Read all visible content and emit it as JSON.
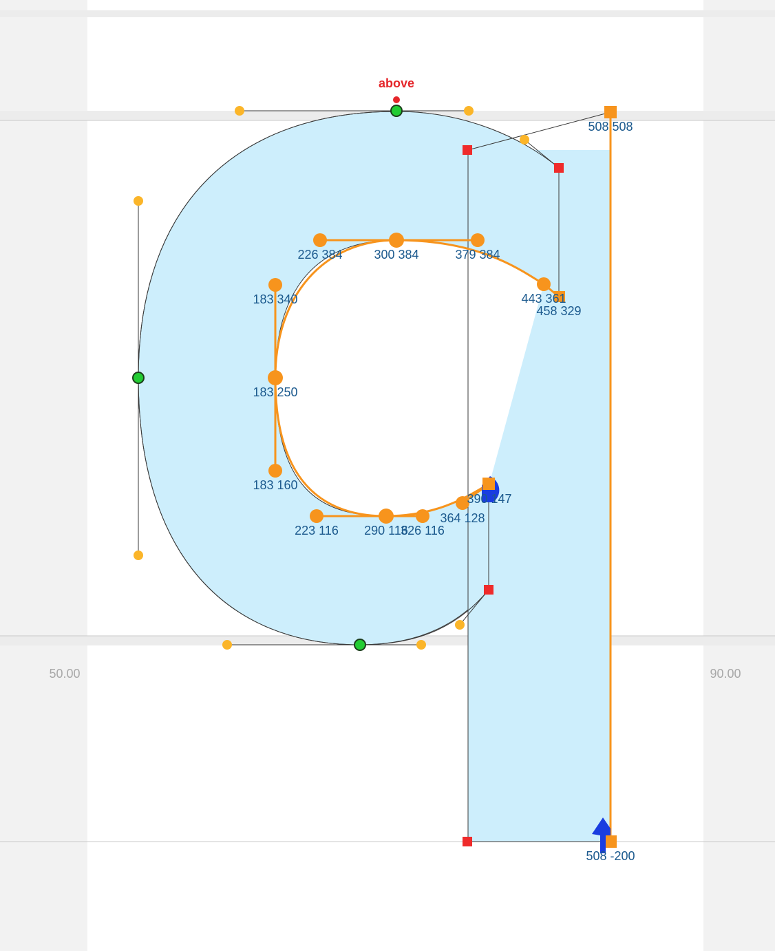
{
  "editor": {
    "sidebearing_left_value": "50.00",
    "sidebearing_right_value": "90.00",
    "anchor_name": "above",
    "colors": {
      "canvas_background": "#ffffff",
      "margin_background": "#f2f2f2",
      "glyph_fill": "#cdeefc",
      "selection_orange": "#f7941d",
      "offcurve_yellow": "#fbb529",
      "oncurve_green": "#22cc33",
      "corner_red": "#ef2b2b",
      "start_blue": "#1a3de0",
      "anchor_red": "#e5262a",
      "label_blue": "#1c5a8e"
    }
  },
  "point_labels": [
    "508 508",
    "226 384",
    "300 384",
    "379 384",
    "443 361",
    "458 329",
    "183 340",
    "183 250",
    "183 160",
    "223 116",
    "290 116",
    "326 116",
    "364 128",
    "390 147",
    "508 -200"
  ]
}
